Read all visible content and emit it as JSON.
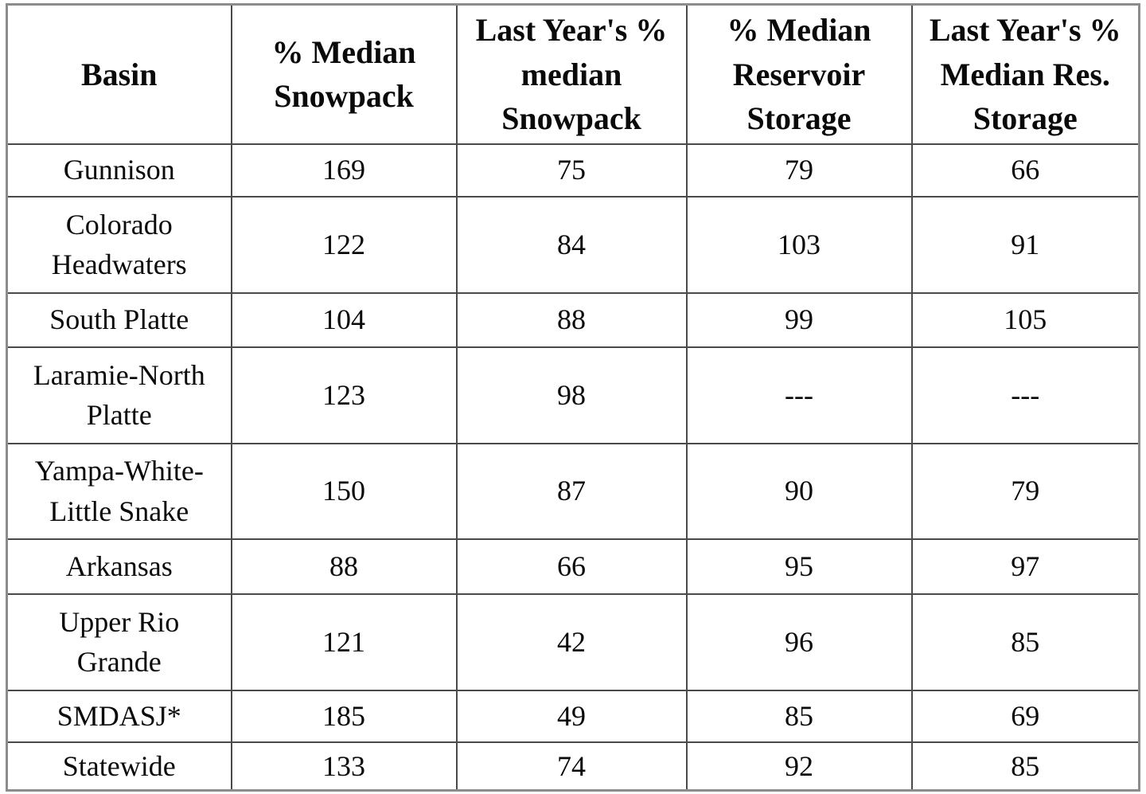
{
  "table": {
    "columns": [
      "Basin",
      "% Median\nSnowpack",
      "Last Year's %\nmedian\nSnowpack",
      "% Median\nReservoir\nStorage",
      "Last Year's %\nMedian Res.\nStorage"
    ],
    "rows": [
      [
        "Gunnison",
        "169",
        "75",
        "79",
        "66"
      ],
      [
        "Colorado\nHeadwaters",
        "122",
        "84",
        "103",
        "91"
      ],
      [
        "South Platte",
        "104",
        "88",
        "99",
        "105"
      ],
      [
        "Laramie-North\nPlatte",
        "123",
        "98",
        "---",
        "---"
      ],
      [
        "Yampa-White-\nLittle Snake",
        "150",
        "87",
        "90",
        "79"
      ],
      [
        "Arkansas",
        "88",
        "66",
        "95",
        "97"
      ],
      [
        "Upper Rio\nGrande",
        "121",
        "42",
        "96",
        "85"
      ],
      [
        "SMDASJ*",
        "185",
        "49",
        "85",
        "69"
      ],
      [
        "Statewide",
        "133",
        "74",
        "92",
        "85"
      ]
    ]
  },
  "chart_data": {
    "type": "table",
    "columns": [
      "Basin",
      "% Median Snowpack",
      "Last Year's % median Snowpack",
      "% Median Reservoir Storage",
      "Last Year's % Median Res. Storage"
    ],
    "rows": [
      {
        "basin": "Gunnison",
        "pct_median_snowpack": 169,
        "last_year_pct_median_snowpack": 75,
        "pct_median_reservoir_storage": 79,
        "last_year_pct_median_res_storage": 66
      },
      {
        "basin": "Colorado Headwaters",
        "pct_median_snowpack": 122,
        "last_year_pct_median_snowpack": 84,
        "pct_median_reservoir_storage": 103,
        "last_year_pct_median_res_storage": 91
      },
      {
        "basin": "South Platte",
        "pct_median_snowpack": 104,
        "last_year_pct_median_snowpack": 88,
        "pct_median_reservoir_storage": 99,
        "last_year_pct_median_res_storage": 105
      },
      {
        "basin": "Laramie-North Platte",
        "pct_median_snowpack": 123,
        "last_year_pct_median_snowpack": 98,
        "pct_median_reservoir_storage": "---",
        "last_year_pct_median_res_storage": "---"
      },
      {
        "basin": "Yampa-White-Little Snake",
        "pct_median_snowpack": 150,
        "last_year_pct_median_snowpack": 87,
        "pct_median_reservoir_storage": 90,
        "last_year_pct_median_res_storage": 79
      },
      {
        "basin": "Arkansas",
        "pct_median_snowpack": 88,
        "last_year_pct_median_snowpack": 66,
        "pct_median_reservoir_storage": 95,
        "last_year_pct_median_res_storage": 97
      },
      {
        "basin": "Upper Rio Grande",
        "pct_median_snowpack": 121,
        "last_year_pct_median_snowpack": 42,
        "pct_median_reservoir_storage": 96,
        "last_year_pct_median_res_storage": 85
      },
      {
        "basin": "SMDASJ*",
        "pct_median_snowpack": 185,
        "last_year_pct_median_snowpack": 49,
        "pct_median_reservoir_storage": 85,
        "last_year_pct_median_res_storage": 69
      },
      {
        "basin": "Statewide",
        "pct_median_snowpack": 133,
        "last_year_pct_median_snowpack": 74,
        "pct_median_reservoir_storage": 92,
        "last_year_pct_median_res_storage": 85
      }
    ],
    "notes": {
      "missing_value_marker": "---",
      "border_color": "#4a4a4a",
      "outer_border_color": "#8c8c8c",
      "text_color": "#0a0a0a",
      "background_color": "#ffffff"
    }
  }
}
